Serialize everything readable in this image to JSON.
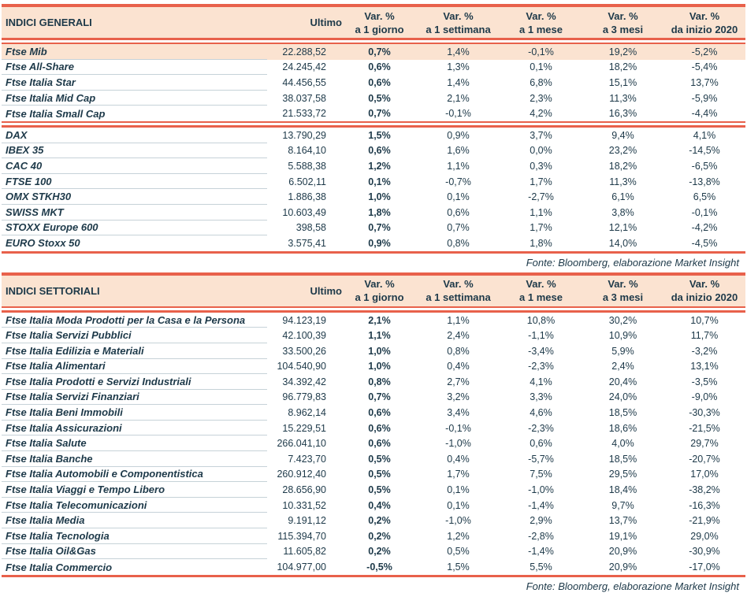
{
  "colors": {
    "accent": "#E8614B",
    "header_bg": "#FBE3D1",
    "row_highlight": "#FBE3D1",
    "text": "#1D3949",
    "separator": "#C6D2D8"
  },
  "tables": [
    {
      "title": "INDICI GENERALI",
      "columns": {
        "ultimo": "Ultimo",
        "var": [
          {
            "line1": "Var. %",
            "line2": "a 1 giorno"
          },
          {
            "line1": "Var. %",
            "line2": "a 1 settimana"
          },
          {
            "line1": "Var. %",
            "line2": "a 1 mese"
          },
          {
            "line1": "Var. %",
            "line2": "a 3 mesi"
          },
          {
            "line1": "Var. %",
            "line2": "da inizio 2020"
          }
        ]
      },
      "groups": [
        {
          "rows": [
            {
              "name": "Ftse Mib",
              "ultimo": "22.288,52",
              "d1": "0,7%",
              "w1": "1,4%",
              "m1": "-0,1%",
              "m3": "19,2%",
              "ytd": "-5,2%",
              "highlight": true
            },
            {
              "name": "Ftse All-Share",
              "ultimo": "24.245,42",
              "d1": "0,6%",
              "w1": "1,3%",
              "m1": "0,1%",
              "m3": "18,2%",
              "ytd": "-5,4%"
            },
            {
              "name": "Ftse Italia Star",
              "ultimo": "44.456,55",
              "d1": "0,6%",
              "w1": "1,4%",
              "m1": "6,8%",
              "m3": "15,1%",
              "ytd": "13,7%"
            },
            {
              "name": "Ftse Italia Mid Cap",
              "ultimo": "38.037,58",
              "d1": "0,5%",
              "w1": "2,1%",
              "m1": "2,3%",
              "m3": "11,3%",
              "ytd": "-5,9%"
            },
            {
              "name": "Ftse Italia Small Cap",
              "ultimo": "21.533,72",
              "d1": "0,7%",
              "w1": "-0,1%",
              "m1": "4,2%",
              "m3": "16,3%",
              "ytd": "-4,4%"
            }
          ]
        },
        {
          "rows": [
            {
              "name": "DAX",
              "ultimo": "13.790,29",
              "d1": "1,5%",
              "w1": "0,9%",
              "m1": "3,7%",
              "m3": "9,4%",
              "ytd": "4,1%"
            },
            {
              "name": "IBEX 35",
              "ultimo": "8.164,10",
              "d1": "0,6%",
              "w1": "1,6%",
              "m1": "0,0%",
              "m3": "23,2%",
              "ytd": "-14,5%"
            },
            {
              "name": "CAC 40",
              "ultimo": "5.588,38",
              "d1": "1,2%",
              "w1": "1,1%",
              "m1": "0,3%",
              "m3": "18,2%",
              "ytd": "-6,5%"
            },
            {
              "name": "FTSE 100",
              "ultimo": "6.502,11",
              "d1": "0,1%",
              "w1": "-0,7%",
              "m1": "1,7%",
              "m3": "11,3%",
              "ytd": "-13,8%"
            },
            {
              "name": "OMX STKH30",
              "ultimo": "1.886,38",
              "d1": "1,0%",
              "w1": "0,1%",
              "m1": "-2,7%",
              "m3": "6,1%",
              "ytd": "6,5%"
            },
            {
              "name": "SWISS MKT",
              "ultimo": "10.603,49",
              "d1": "1,8%",
              "w1": "0,6%",
              "m1": "1,1%",
              "m3": "3,8%",
              "ytd": "-0,1%"
            },
            {
              "name": "STOXX Europe 600",
              "ultimo": "398,58",
              "d1": "0,7%",
              "w1": "0,7%",
              "m1": "1,7%",
              "m3": "12,1%",
              "ytd": "-4,2%"
            },
            {
              "name": "EURO Stoxx 50",
              "ultimo": "3.575,41",
              "d1": "0,9%",
              "w1": "0,8%",
              "m1": "1,8%",
              "m3": "14,0%",
              "ytd": "-4,5%"
            }
          ]
        }
      ],
      "source": "Fonte: Bloomberg, elaborazione Market Insight"
    },
    {
      "title": "INDICI SETTORIALI",
      "columns": {
        "ultimo": "Ultimo",
        "var": [
          {
            "line1": "Var. %",
            "line2": "a 1 giorno"
          },
          {
            "line1": "Var. %",
            "line2": "a 1 settimana"
          },
          {
            "line1": "Var. %",
            "line2": "a 1 mese"
          },
          {
            "line1": "Var. %",
            "line2": "a 3 mesi"
          },
          {
            "line1": "Var. %",
            "line2": "da inizio 2020"
          }
        ]
      },
      "groups": [
        {
          "rows": [
            {
              "name": "Ftse Italia Moda Prodotti per la Casa e la Persona",
              "ultimo": "94.123,19",
              "d1": "2,1%",
              "w1": "1,1%",
              "m1": "10,8%",
              "m3": "30,2%",
              "ytd": "10,7%"
            },
            {
              "name": "Ftse Italia Servizi Pubblici",
              "ultimo": "42.100,39",
              "d1": "1,1%",
              "w1": "2,4%",
              "m1": "-1,1%",
              "m3": "10,9%",
              "ytd": "11,7%"
            },
            {
              "name": "Ftse Italia Edilizia e Materiali",
              "ultimo": "33.500,26",
              "d1": "1,0%",
              "w1": "0,8%",
              "m1": "-3,4%",
              "m3": "5,9%",
              "ytd": "-3,2%"
            },
            {
              "name": "Ftse Italia Alimentari",
              "ultimo": "104.540,90",
              "d1": "1,0%",
              "w1": "0,4%",
              "m1": "-2,3%",
              "m3": "2,4%",
              "ytd": "13,1%"
            },
            {
              "name": "Ftse Italia Prodotti e Servizi Industriali",
              "ultimo": "34.392,42",
              "d1": "0,8%",
              "w1": "2,7%",
              "m1": "4,1%",
              "m3": "20,4%",
              "ytd": "-3,5%"
            },
            {
              "name": "Ftse Italia Servizi Finanziari",
              "ultimo": "96.779,83",
              "d1": "0,7%",
              "w1": "3,2%",
              "m1": "3,3%",
              "m3": "24,0%",
              "ytd": "-9,0%"
            },
            {
              "name": "Ftse Italia Beni Immobili",
              "ultimo": "8.962,14",
              "d1": "0,6%",
              "w1": "3,4%",
              "m1": "4,6%",
              "m3": "18,5%",
              "ytd": "-30,3%"
            },
            {
              "name": "Ftse Italia Assicurazioni",
              "ultimo": "15.229,51",
              "d1": "0,6%",
              "w1": "-0,1%",
              "m1": "-2,3%",
              "m3": "18,6%",
              "ytd": "-21,5%"
            },
            {
              "name": "Ftse Italia Salute",
              "ultimo": "266.041,10",
              "d1": "0,6%",
              "w1": "-1,0%",
              "m1": "0,6%",
              "m3": "4,0%",
              "ytd": "29,7%"
            },
            {
              "name": "Ftse Italia Banche",
              "ultimo": "7.423,70",
              "d1": "0,5%",
              "w1": "0,4%",
              "m1": "-5,7%",
              "m3": "18,5%",
              "ytd": "-20,7%"
            },
            {
              "name": "Ftse Italia Automobili e Componentistica",
              "ultimo": "260.912,40",
              "d1": "0,5%",
              "w1": "1,7%",
              "m1": "7,5%",
              "m3": "29,5%",
              "ytd": "17,0%"
            },
            {
              "name": "Ftse Italia Viaggi e Tempo Libero",
              "ultimo": "28.656,90",
              "d1": "0,5%",
              "w1": "0,1%",
              "m1": "-1,0%",
              "m3": "18,4%",
              "ytd": "-38,2%"
            },
            {
              "name": "Ftse Italia Telecomunicazioni",
              "ultimo": "10.331,52",
              "d1": "0,4%",
              "w1": "0,1%",
              "m1": "-1,4%",
              "m3": "9,7%",
              "ytd": "-16,3%"
            },
            {
              "name": "Ftse Italia Media",
              "ultimo": "9.191,12",
              "d1": "0,2%",
              "w1": "-1,0%",
              "m1": "2,9%",
              "m3": "13,7%",
              "ytd": "-21,9%"
            },
            {
              "name": "Ftse Italia Tecnologia",
              "ultimo": "115.394,70",
              "d1": "0,2%",
              "w1": "1,2%",
              "m1": "-2,8%",
              "m3": "19,1%",
              "ytd": "29,0%"
            },
            {
              "name": "Ftse Italia Oil&Gas",
              "ultimo": "11.605,82",
              "d1": "0,2%",
              "w1": "0,5%",
              "m1": "-1,4%",
              "m3": "20,9%",
              "ytd": "-30,9%"
            },
            {
              "name": "Ftse Italia Commercio",
              "ultimo": "104.977,00",
              "d1": "-0,5%",
              "w1": "1,5%",
              "m1": "5,5%",
              "m3": "20,9%",
              "ytd": "-17,0%"
            }
          ]
        }
      ],
      "source": "Fonte: Bloomberg, elaborazione Market Insight"
    }
  ]
}
